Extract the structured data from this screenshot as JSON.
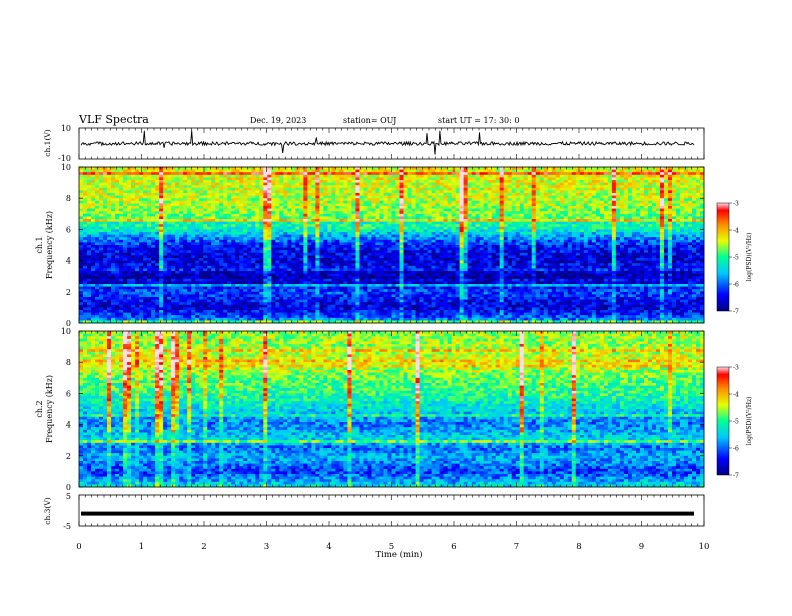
{
  "header": {
    "title": "VLF Spectra",
    "date": "Dec. 19, 2023",
    "station": "station= OUJ",
    "start": "start  UT  =    17: 30: 0"
  },
  "colors": {
    "colormap": [
      "#000080",
      "#0000ff",
      "#00c8ff",
      "#00ff96",
      "#e6ff00",
      "#ff8c00",
      "#ff0000",
      "#ffdce6"
    ]
  },
  "chart_data": [
    {
      "type": "line",
      "panel": "ch1-waveform",
      "ylabel": "ch.1(V)",
      "ylim": [
        -10,
        10
      ],
      "yticks": [
        "10",
        "-10"
      ],
      "xlim": [
        0,
        10
      ],
      "baseline": 0
    },
    {
      "type": "heatmap",
      "panel": "ch1-spectrogram",
      "ylabel": "ch.1\nFrequency  (kHz)",
      "ylim": [
        0,
        10
      ],
      "yticks": [
        "0",
        "2",
        "4",
        "6",
        "8",
        "10"
      ],
      "xlim": [
        0,
        10
      ],
      "colorbar": {
        "label": "log(PSD)(V²/Hz)",
        "range": [
          -7,
          -3
        ],
        "ticks": [
          "-3",
          "-4",
          "-5",
          "-6",
          "-7"
        ]
      },
      "profile": [
        {
          "f": 0,
          "v": -5.6
        },
        {
          "f": 0.5,
          "v": -6.2
        },
        {
          "f": 1,
          "v": -6.6
        },
        {
          "f": 1.5,
          "v": -6.4
        },
        {
          "f": 2,
          "v": -6.1
        },
        {
          "f": 2.5,
          "v": -6.6
        },
        {
          "f": 3,
          "v": -6.8
        },
        {
          "f": 3.5,
          "v": -6.4
        },
        {
          "f": 4,
          "v": -6.6
        },
        {
          "f": 4.5,
          "v": -6.5
        },
        {
          "f": 5,
          "v": -6.3
        },
        {
          "f": 5.5,
          "v": -5.8
        },
        {
          "f": 6,
          "v": -5.2
        },
        {
          "f": 6.5,
          "v": -4.9
        },
        {
          "f": 7,
          "v": -4.7
        },
        {
          "f": 8,
          "v": -4.5
        },
        {
          "f": 9,
          "v": -4.4
        },
        {
          "f": 10,
          "v": -4.3
        }
      ]
    },
    {
      "type": "heatmap",
      "panel": "ch2-spectrogram",
      "ylabel": "ch.2\nFrequency  (kHz)",
      "ylim": [
        0,
        10
      ],
      "yticks": [
        "0",
        "2",
        "4",
        "6",
        "8",
        "10"
      ],
      "xlim": [
        0,
        10
      ],
      "colorbar": {
        "label": "log(PSD)(V²/Hz)",
        "range": [
          -7,
          -3
        ],
        "ticks": [
          "-3",
          "-4",
          "-5",
          "-6",
          "-7"
        ]
      },
      "profile": [
        {
          "f": 0,
          "v": -5.3
        },
        {
          "f": 0.5,
          "v": -5.8
        },
        {
          "f": 1,
          "v": -6.2
        },
        {
          "f": 1.5,
          "v": -5.9
        },
        {
          "f": 2,
          "v": -5.6
        },
        {
          "f": 2.5,
          "v": -6.0
        },
        {
          "f": 3,
          "v": -5.4
        },
        {
          "f": 3.5,
          "v": -5.6
        },
        {
          "f": 4,
          "v": -5.9
        },
        {
          "f": 4.5,
          "v": -5.7
        },
        {
          "f": 5,
          "v": -5.4
        },
        {
          "f": 6,
          "v": -5.0
        },
        {
          "f": 7,
          "v": -4.8
        },
        {
          "f": 8,
          "v": -4.3
        },
        {
          "f": 9,
          "v": -4.6
        },
        {
          "f": 10,
          "v": -4.6
        }
      ]
    },
    {
      "type": "line",
      "panel": "ch3-waveform",
      "ylabel": "ch.3(V)",
      "ylim": [
        -5,
        5
      ],
      "yticks": [
        "5",
        "-5"
      ],
      "xlim": [
        0,
        10
      ],
      "baseline": -1
    }
  ],
  "xaxis": {
    "label": "Time  (min)",
    "ticks": [
      "0",
      "1",
      "2",
      "3",
      "4",
      "5",
      "6",
      "7",
      "8",
      "9",
      "10"
    ]
  }
}
